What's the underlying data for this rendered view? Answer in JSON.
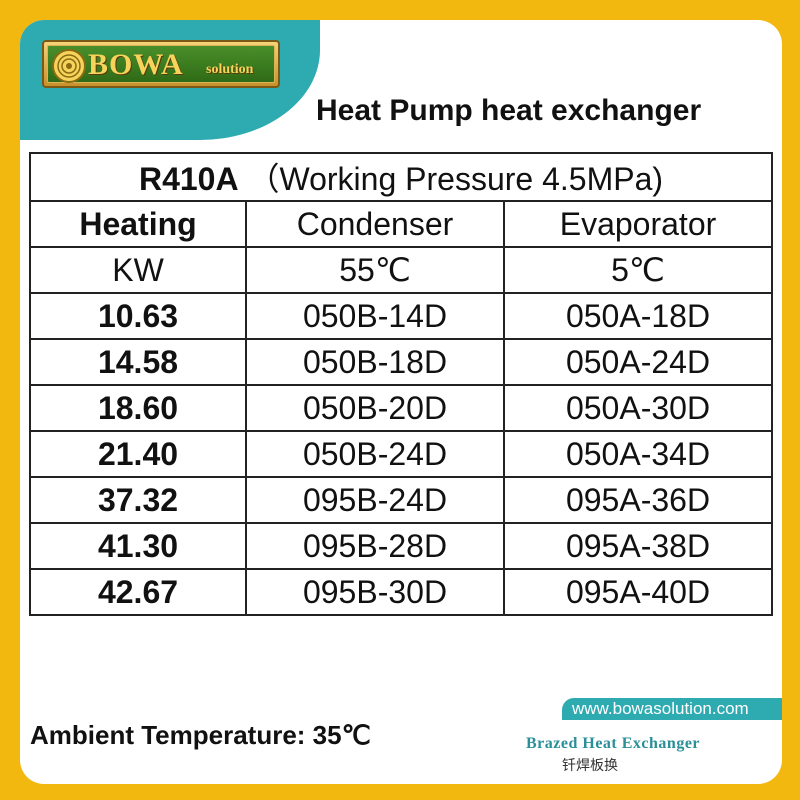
{
  "colors": {
    "frame": "#f3b80f",
    "teal": "#2eaab1",
    "logo_gold": "#f6d35a",
    "logo_green": "#3b7d20",
    "text": "#111111",
    "brazed_text": "#2a8f98"
  },
  "logo": {
    "icon": "gear-coil-icon",
    "brand": "BOWA",
    "sub": "solution"
  },
  "headline": "Heat Pump heat exchanger",
  "table": {
    "title": "R410A",
    "subtitle": "（Working Pressure 4.5MPa)",
    "headers": [
      "Heating",
      "Condenser",
      "Evaporator"
    ],
    "units": [
      "KW",
      "55℃",
      "5℃"
    ],
    "rows": [
      {
        "heating": "10.63",
        "condenser": "050B-14D",
        "evaporator": "050A-18D"
      },
      {
        "heating": "14.58",
        "condenser": "050B-18D",
        "evaporator": "050A-24D"
      },
      {
        "heating": "18.60",
        "condenser": "050B-20D",
        "evaporator": "050A-30D"
      },
      {
        "heating": "21.40",
        "condenser": "050B-24D",
        "evaporator": "050A-34D"
      },
      {
        "heating": "37.32",
        "condenser": "095B-24D",
        "evaporator": "095A-36D"
      },
      {
        "heating": "41.30",
        "condenser": "095B-28D",
        "evaporator": "095A-38D"
      },
      {
        "heating": "42.67",
        "condenser": "095B-30D",
        "evaporator": "095A-40D"
      }
    ]
  },
  "ambient": "Ambient Temperature: 35℃",
  "website": "www.bowasolution.com",
  "product_en": "Brazed Heat Exchanger",
  "product_cn": "钎焊板换"
}
